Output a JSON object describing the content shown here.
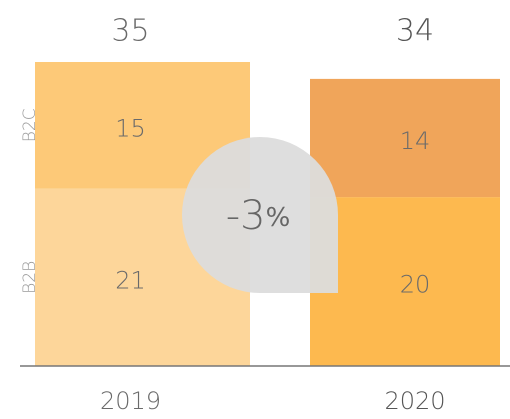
{
  "chart_data": {
    "type": "stacked_bar",
    "categories": [
      "2019",
      "2020"
    ],
    "totals": [
      "35",
      "34"
    ],
    "bold": [
      false,
      true
    ],
    "series": [
      {
        "name": "B2B",
        "values": [
          21,
          20
        ],
        "colors": [
          "#fdd69a",
          "#fdb94f"
        ]
      },
      {
        "name": "B2C",
        "values": [
          15,
          14
        ],
        "colors": [
          "#fdc978",
          "#f0a55a"
        ]
      }
    ],
    "ylim": [
      0,
      36
    ],
    "annotation": "-3%"
  }
}
